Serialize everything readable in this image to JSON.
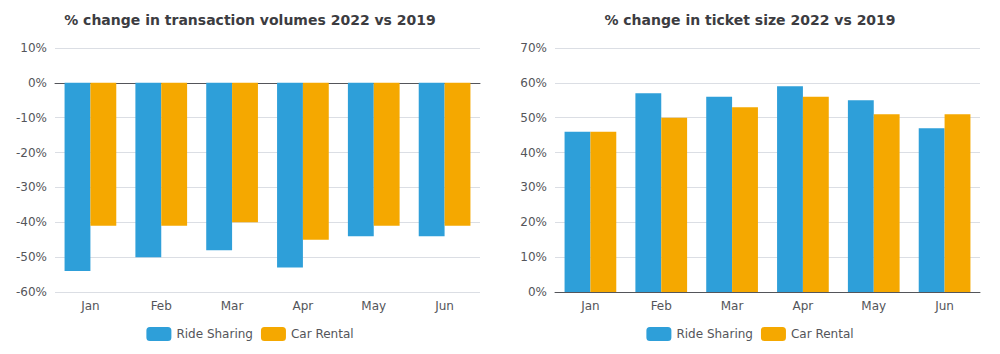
{
  "chart_data": [
    {
      "type": "bar",
      "title": "% change in transaction volumes 2022 vs 2019",
      "categories": [
        "Jan",
        "Feb",
        "Mar",
        "Apr",
        "May",
        "Jun"
      ],
      "series": [
        {
          "name": "Ride Sharing",
          "color": "#2E9FD9",
          "values": [
            -0.54,
            -0.5,
            -0.48,
            -0.53,
            -0.44,
            -0.44
          ]
        },
        {
          "name": "Car Rental",
          "color": "#F5A800",
          "values": [
            -0.41,
            -0.41,
            -0.4,
            -0.45,
            -0.41,
            -0.41
          ]
        }
      ],
      "ylim": [
        -0.6,
        0.1
      ],
      "yticks": [
        {
          "value": 0.1,
          "label": "10%"
        },
        {
          "value": 0.0,
          "label": "0%"
        },
        {
          "value": -0.1,
          "label": "-10%"
        },
        {
          "value": -0.2,
          "label": "-20%"
        },
        {
          "value": -0.3,
          "label": "-30%"
        },
        {
          "value": -0.4,
          "label": "-40%"
        },
        {
          "value": -0.5,
          "label": "-50%"
        },
        {
          "value": -0.6,
          "label": "-60%"
        }
      ],
      "grid": true,
      "legend": "bottom"
    },
    {
      "type": "bar",
      "title": "% change in ticket size 2022 vs 2019",
      "categories": [
        "Jan",
        "Feb",
        "Mar",
        "Apr",
        "May",
        "Jun"
      ],
      "series": [
        {
          "name": "Ride Sharing",
          "color": "#2E9FD9",
          "values": [
            0.46,
            0.57,
            0.56,
            0.59,
            0.55,
            0.47
          ]
        },
        {
          "name": "Car Rental",
          "color": "#F5A800",
          "values": [
            0.46,
            0.5,
            0.53,
            0.56,
            0.51,
            0.51
          ]
        }
      ],
      "ylim": [
        0,
        0.7
      ],
      "yticks": [
        {
          "value": 0,
          "label": "0%"
        },
        {
          "value": 0.1,
          "label": "10%"
        },
        {
          "value": 0.2,
          "label": "20%"
        },
        {
          "value": 0.3,
          "label": "30%"
        },
        {
          "value": 0.4,
          "label": "40%"
        },
        {
          "value": 0.5,
          "label": "50%"
        },
        {
          "value": 0.6,
          "label": "60%"
        },
        {
          "value": 0.7,
          "label": "70%"
        }
      ],
      "grid": true,
      "legend": "bottom"
    }
  ]
}
